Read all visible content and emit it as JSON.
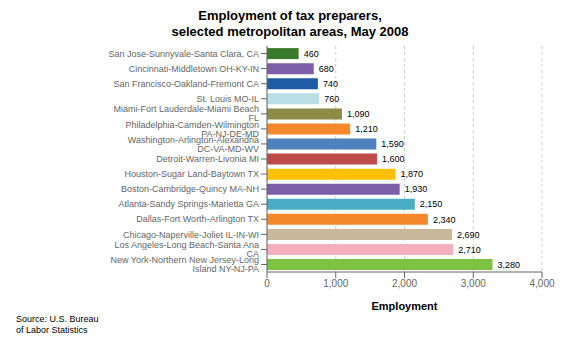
{
  "chart_data": {
    "type": "bar",
    "orientation": "horizontal",
    "title": "Employment of tax preparers,\nselected metropolitan areas, May 2008",
    "categories": [
      "New York-Northern New Jersey-Long Island NY-NJ-PA",
      "Los Angeles-Long Beach-Santa Ana CA",
      "Chicago-Naperville-Joliet IL-IN-WI",
      "Dallas-Fort Worth-Arlington TX",
      "Atlanta-Sandy Springs-Marietta GA",
      "Boston-Cambridge-Quincy MA-NH",
      "Houston-Sugar Land-Baytown TX",
      "Detroit-Warren-Livonia MI",
      "Washington-Arlington-Alexandria DC-VA-MD-WV",
      "Philadelphia-Camden-Wilmington PA-NJ-DE-MD",
      "Miami-Fort Lauderdale-Miami Beach FL",
      "St. Louis MO-IL",
      "San Francisco-Oakland-Fremont CA",
      "Cincinnati-Middletown OH-KY-IN",
      "San Jose-Sunnyvale-Santa Clara, CA"
    ],
    "values": [
      3280,
      2710,
      2690,
      2340,
      2150,
      1930,
      1870,
      1600,
      1590,
      1210,
      1090,
      760,
      740,
      680,
      460
    ],
    "value_labels": [
      "3,280",
      "2,710",
      "2,690",
      "2,340",
      "2,150",
      "1,930",
      "1,870",
      "1,600",
      "1,590",
      "1,210",
      "1,090",
      "760",
      "740",
      "680",
      "460"
    ],
    "colors": [
      "#7DC242",
      "#F4AEBE",
      "#C8B89A",
      "#F4882A",
      "#4BACC6",
      "#7B5EA7",
      "#FFC000",
      "#BE4B48",
      "#4F81BD",
      "#F4882A",
      "#8D8B47",
      "#B8DEE6",
      "#1F5CA6",
      "#7B5EA7",
      "#3A7A2C"
    ],
    "xlabel": "Employment",
    "xlim": [
      0,
      4000
    ],
    "xticks": [
      0,
      {
        "value": 1000,
        "label": "1,000"
      },
      {
        "value": 2000,
        "label": "2,000"
      },
      {
        "value": 3000,
        "label": "3,000"
      },
      {
        "value": 4000,
        "label": "4,000"
      }
    ],
    "grid": true,
    "data_labels": true,
    "annotations": [
      "Source: U.S. Bureau\nof Labor Statistics"
    ]
  }
}
